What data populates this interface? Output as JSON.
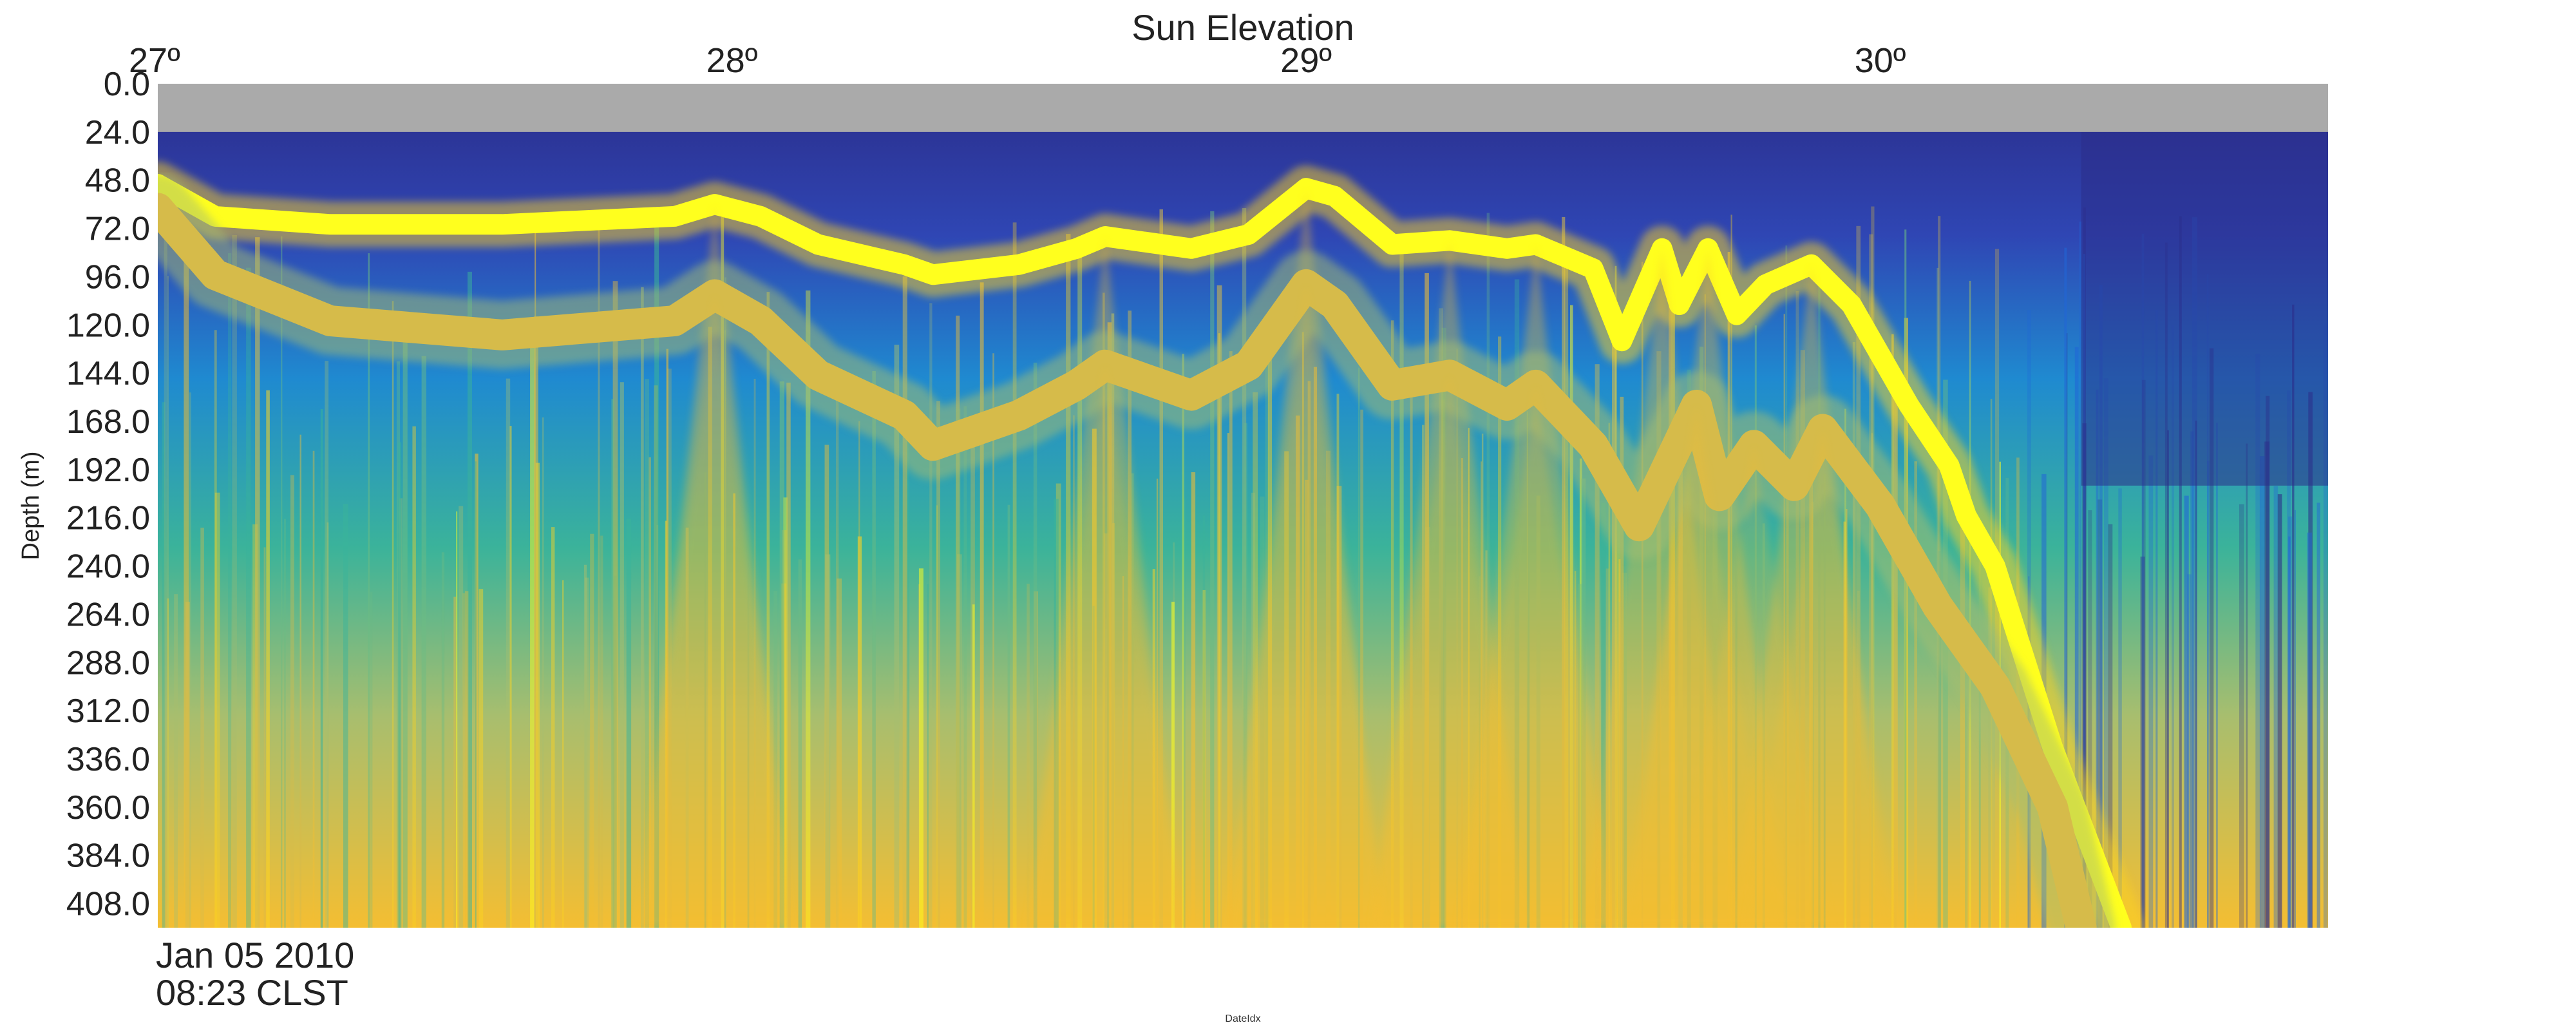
{
  "chart_data": {
    "type": "heatmap",
    "title": "Sun Elevation",
    "ylabel": "Depth (m)",
    "xlabel": "DateIdx",
    "x_top_axis": {
      "label": "Sun Elevation",
      "ticks": [
        "27º",
        "28º",
        "29º",
        "30º"
      ],
      "tick_values": [
        27,
        28,
        29,
        30
      ],
      "range": [
        27,
        30.78
      ]
    },
    "y_axis": {
      "ticks": [
        "0.0",
        "24.0",
        "48.0",
        "72.0",
        "96.0",
        "120.0",
        "144.0",
        "168.0",
        "192.0",
        "216.0",
        "240.0",
        "264.0",
        "288.0",
        "312.0",
        "336.0",
        "360.0",
        "384.0",
        "408.0"
      ],
      "range": [
        0,
        420
      ],
      "inverted": true
    },
    "start_label": {
      "date": "Jan 05 2010",
      "time": "08:23 CLST"
    },
    "no_data_band": {
      "depth_range": [
        0,
        24
      ],
      "color": "#aaaaaa"
    },
    "colormap": [
      "#2b2d8a",
      "#2f46b4",
      "#2166d6",
      "#1f8ad0",
      "#22a6b4",
      "#3bb39a",
      "#6cbc84",
      "#a8be6e",
      "#d6bb4a",
      "#f4be32",
      "#fbd322",
      "#ffff1e"
    ],
    "layers": [
      {
        "name": "primary",
        "points": [
          [
            27.0,
            50
          ],
          [
            27.1,
            66
          ],
          [
            27.3,
            70
          ],
          [
            27.6,
            70
          ],
          [
            27.9,
            66
          ],
          [
            27.97,
            60
          ],
          [
            28.05,
            66
          ],
          [
            28.15,
            80
          ],
          [
            28.3,
            90
          ],
          [
            28.35,
            95
          ],
          [
            28.5,
            90
          ],
          [
            28.6,
            82
          ],
          [
            28.65,
            76
          ],
          [
            28.8,
            82
          ],
          [
            28.9,
            75
          ],
          [
            29.0,
            52
          ],
          [
            29.05,
            56
          ],
          [
            29.15,
            80
          ],
          [
            29.25,
            78
          ],
          [
            29.35,
            82
          ],
          [
            29.4,
            80
          ],
          [
            29.5,
            92
          ],
          [
            29.55,
            128
          ],
          [
            29.62,
            82
          ],
          [
            29.65,
            110
          ],
          [
            29.7,
            82
          ],
          [
            29.75,
            115
          ],
          [
            29.8,
            100
          ],
          [
            29.88,
            90
          ],
          [
            29.95,
            110
          ],
          [
            30.05,
            160
          ],
          [
            30.12,
            190
          ],
          [
            30.15,
            215
          ],
          [
            30.2,
            240
          ],
          [
            30.3,
            330
          ],
          [
            30.42,
            420
          ]
        ],
        "strength": 1.0,
        "width": 8
      },
      {
        "name": "secondary",
        "points": [
          [
            27.0,
            62
          ],
          [
            27.1,
            95
          ],
          [
            27.3,
            118
          ],
          [
            27.6,
            125
          ],
          [
            27.9,
            118
          ],
          [
            27.97,
            105
          ],
          [
            28.05,
            118
          ],
          [
            28.15,
            145
          ],
          [
            28.3,
            165
          ],
          [
            28.35,
            180
          ],
          [
            28.5,
            165
          ],
          [
            28.6,
            150
          ],
          [
            28.65,
            140
          ],
          [
            28.8,
            155
          ],
          [
            28.9,
            140
          ],
          [
            29.0,
            100
          ],
          [
            29.05,
            110
          ],
          [
            29.15,
            150
          ],
          [
            29.25,
            145
          ],
          [
            29.35,
            160
          ],
          [
            29.4,
            150
          ],
          [
            29.5,
            180
          ],
          [
            29.58,
            220
          ],
          [
            29.68,
            160
          ],
          [
            29.72,
            205
          ],
          [
            29.78,
            180
          ],
          [
            29.85,
            200
          ],
          [
            29.9,
            172
          ],
          [
            30.0,
            210
          ],
          [
            30.1,
            260
          ],
          [
            30.2,
            300
          ],
          [
            30.3,
            360
          ],
          [
            30.35,
            420
          ]
        ],
        "strength": 0.6,
        "width": 12
      }
    ]
  }
}
